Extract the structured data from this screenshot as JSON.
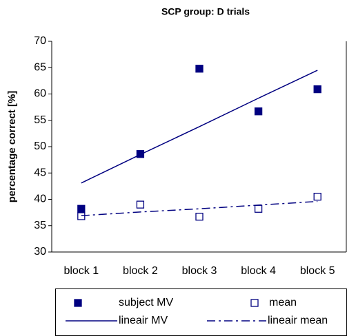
{
  "chart_data": {
    "type": "line",
    "title": "SCP group: D trials",
    "y_label": "percentage correct [%]",
    "categories": [
      "block 1",
      "block 2",
      "block 3",
      "block 4",
      "block 5"
    ],
    "series": [
      {
        "name": "subject MV",
        "color": "#000080",
        "marker": "filled-square",
        "line": "none",
        "values": [
          38.2,
          48.6,
          64.8,
          56.7,
          60.9
        ]
      },
      {
        "name": "mean",
        "color": "#000080",
        "marker": "open-square",
        "line": "none",
        "values": [
          36.8,
          39.0,
          36.7,
          38.2,
          40.5
        ]
      },
      {
        "name": "lineair MV",
        "color": "#000080",
        "marker": "none",
        "line": "solid",
        "values": [
          43.1,
          48.5,
          53.8,
          59.2,
          64.5
        ]
      },
      {
        "name": "lineair mean",
        "color": "#000080",
        "marker": "none",
        "line": "dash-dot",
        "values": [
          36.9,
          37.6,
          38.2,
          38.9,
          39.6
        ]
      }
    ],
    "ylim": [
      30,
      70
    ],
    "yticks": [
      30,
      35,
      40,
      45,
      50,
      55,
      60,
      65,
      70
    ],
    "grid": false
  }
}
